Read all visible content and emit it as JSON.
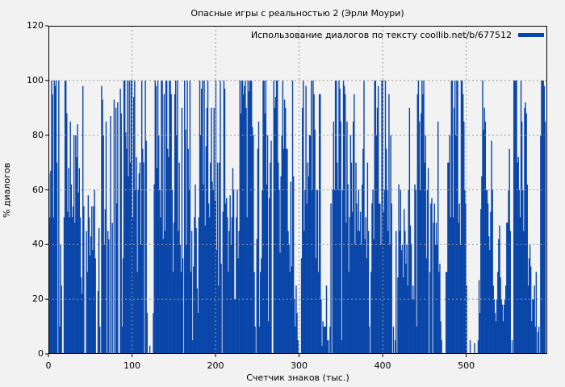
{
  "chart_data": {
    "type": "bar",
    "title": "Опасные игры с реальностью 2 (Эрли Моури)",
    "xlabel": "Счетчик знаков (тыс.)",
    "ylabel": "% диалогов",
    "xlim": [
      0,
      597
    ],
    "ylim": [
      0,
      120
    ],
    "xticks": [
      0,
      100,
      200,
      300,
      400,
      500
    ],
    "yticks": [
      0,
      20,
      40,
      60,
      80,
      100,
      120
    ],
    "grid": true,
    "legend": {
      "position": "upper right",
      "entries": [
        "Использование диалогов по тексту coollib.net/b/677512"
      ]
    },
    "bar_color": "#0a46a9",
    "bin_width": 2.9,
    "series": [
      {
        "name": "Использование диалогов по тексту coollib.net/b/677512",
        "values": [
          66,
          50,
          67,
          100,
          95,
          50,
          100,
          98,
          100,
          70,
          0,
          100,
          10,
          40,
          25,
          0,
          0,
          50,
          100,
          100,
          88,
          52,
          68,
          50,
          85,
          62,
          50,
          54,
          80,
          48,
          80,
          72,
          84,
          59,
          68,
          50,
          28,
          22,
          98,
          54,
          0,
          0,
          45,
          30,
          58,
          50,
          36,
          43,
          54,
          38,
          54,
          60,
          35,
          0,
          0,
          23,
          46,
          10,
          0,
          98,
          93,
          80,
          40,
          53,
          85,
          0,
          45,
          42,
          0,
          87,
          0,
          48,
          0,
          93,
          0,
          90,
          55,
          92,
          0,
          0,
          97,
          88,
          10,
          35,
          100,
          100,
          81,
          75,
          100,
          65,
          100,
          70,
          100,
          100,
          50,
          94,
          100,
          60,
          72,
          30,
          60,
          66,
          70,
          40,
          100,
          75,
          70,
          0,
          100,
          78,
          15,
          0,
          0,
          3,
          0,
          0,
          0,
          15,
          62,
          100,
          98,
          68,
          100,
          80,
          60,
          50,
          100,
          100,
          42,
          95,
          45,
          100,
          100,
          75,
          72,
          100,
          100,
          95,
          60,
          30,
          48,
          95,
          100,
          80,
          100,
          45,
          70,
          40,
          30,
          90,
          35,
          0,
          100,
          82,
          40,
          100,
          75,
          60,
          100,
          30,
          45,
          5,
          32,
          50,
          62,
          46,
          24,
          15,
          50,
          100,
          80,
          97,
          100,
          62,
          100,
          47,
          76,
          90,
          100,
          55,
          50,
          70,
          90,
          63,
          60,
          90,
          56,
          100,
          38,
          70,
          25,
          70,
          100,
          33,
          0,
          52,
          100,
          97,
          55,
          57,
          50,
          30,
          45,
          58,
          40,
          50,
          68,
          60,
          20,
          20,
          50,
          60,
          35,
          45,
          100,
          88,
          100,
          100,
          95,
          98,
          100,
          90,
          50,
          100,
          96,
          100,
          100,
          100,
          83,
          80,
          30,
          10,
          0,
          42,
          75,
          85,
          10,
          30,
          35,
          60,
          100,
          100,
          88,
          100,
          62,
          80,
          12,
          57,
          70,
          78,
          0,
          0,
          100,
          90,
          94,
          100,
          100,
          70,
          60,
          37,
          65,
          80,
          100,
          75,
          93,
          90,
          75,
          75,
          45,
          40,
          30,
          63,
          32,
          100,
          65,
          20,
          10,
          25,
          15,
          5,
          0,
          0,
          0,
          35,
          90,
          100,
          45,
          60,
          98,
          55,
          70,
          65,
          80,
          80,
          100,
          60,
          100,
          95,
          82,
          35,
          60,
          60,
          30,
          95,
          95,
          20,
          3,
          12,
          10,
          10,
          10,
          25,
          5,
          5,
          0,
          10,
          55,
          0,
          60,
          85,
          60,
          100,
          100,
          70,
          60,
          100,
          97,
          85,
          5,
          60,
          100,
          98,
          95,
          48,
          85,
          62,
          30,
          50,
          80,
          70,
          52,
          85,
          95,
          40,
          70,
          55,
          45,
          60,
          45,
          52,
          40,
          62,
          75,
          100,
          42,
          50,
          35,
          70,
          45,
          10,
          0,
          30,
          55,
          60,
          42,
          100,
          100,
          80,
          90,
          98,
          55,
          55,
          40,
          100,
          100,
          52,
          60,
          100,
          75,
          60,
          45,
          95,
          40,
          80,
          55,
          0,
          10,
          0,
          5,
          45,
          0,
          28,
          62,
          45,
          60,
          38,
          40,
          28,
          53,
          45,
          33,
          40,
          25,
          60,
          90,
          47,
          40,
          20,
          25,
          20,
          62,
          60,
          10,
          95,
          100,
          85,
          60,
          88,
          100,
          95,
          100,
          70,
          80,
          35,
          60,
          68,
          0,
          30,
          55,
          57,
          0,
          48,
          55,
          40,
          48,
          40,
          85,
          30,
          33,
          12,
          5,
          0,
          0,
          0,
          0,
          30,
          30,
          70,
          70,
          80,
          50,
          100,
          100,
          50,
          90,
          100,
          80,
          100,
          100,
          48,
          55,
          40,
          100,
          100,
          95,
          85,
          60,
          55,
          25,
          0,
          0,
          0,
          5,
          0,
          0,
          0,
          0,
          4,
          0,
          0,
          0,
          5,
          27,
          15,
          53,
          65,
          100,
          82,
          90,
          85,
          60,
          60,
          55,
          43,
          38,
          52,
          78,
          60,
          25,
          20,
          15,
          12,
          20,
          30,
          42,
          47,
          28,
          20,
          18,
          12,
          18,
          20,
          25,
          48,
          48,
          60,
          75,
          45,
          0,
          5,
          0,
          100,
          100,
          100,
          100,
          70,
          72,
          60,
          50,
          100,
          85,
          60,
          45,
          90,
          92,
          88,
          62,
          25,
          35,
          40,
          32,
          12,
          20,
          20,
          25,
          10,
          30,
          0,
          8,
          10,
          0,
          80,
          100,
          100,
          100,
          98,
          85,
          0,
          0
        ]
      }
    ]
  }
}
